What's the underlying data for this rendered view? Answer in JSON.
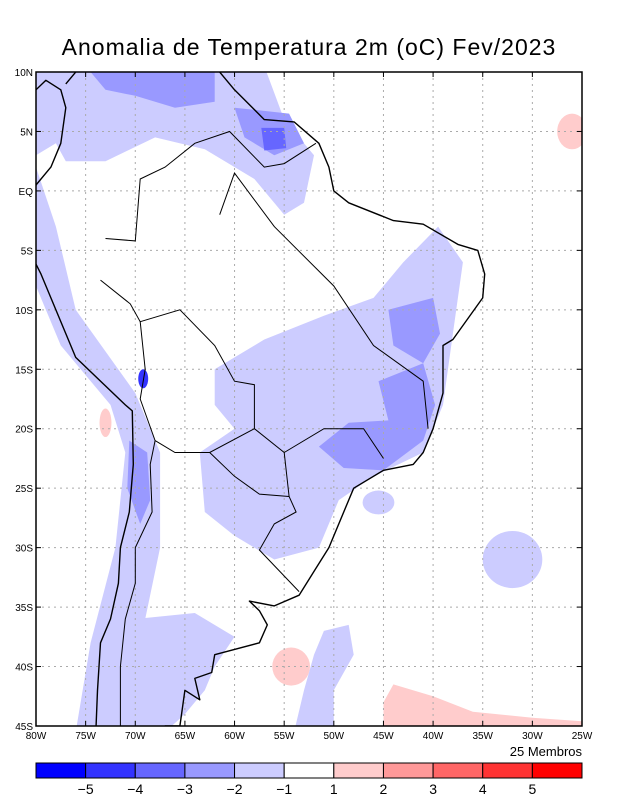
{
  "title": "Anomalia de Temperatura 2m (oC) Fev/2023",
  "members_label": "25 Membros",
  "lat_ticks": [
    "10N",
    "5N",
    "EQ",
    "5S",
    "10S",
    "15S",
    "20S",
    "25S",
    "30S",
    "35S",
    "40S",
    "45S"
  ],
  "lon_ticks": [
    "80W",
    "75W",
    "70W",
    "65W",
    "60W",
    "55W",
    "50W",
    "45W",
    "40W",
    "35W",
    "30W",
    "25W"
  ],
  "colorbar": {
    "colors": [
      "#0000ff",
      "#3333ff",
      "#6666ff",
      "#9999ff",
      "#ccccff",
      "#ffffff",
      "#ffcccc",
      "#ff9999",
      "#ff6666",
      "#ff3333",
      "#ff0000"
    ],
    "labels": [
      "-5",
      "-4",
      "-3",
      "-2",
      "-1",
      "1",
      "2",
      "3",
      "4",
      "5"
    ]
  },
  "chart_data": {
    "type": "heatmap",
    "title": "Anomalia de Temperatura 2m (oC) Fev/2023",
    "variable": "2m temperature anomaly (oC)",
    "lon_range": [
      -80,
      -25
    ],
    "lat_range": [
      -45,
      10
    ],
    "levels": [
      -5,
      -4,
      -3,
      -2,
      -1,
      1,
      2,
      3,
      4,
      5
    ],
    "note": "25 Membros"
  }
}
